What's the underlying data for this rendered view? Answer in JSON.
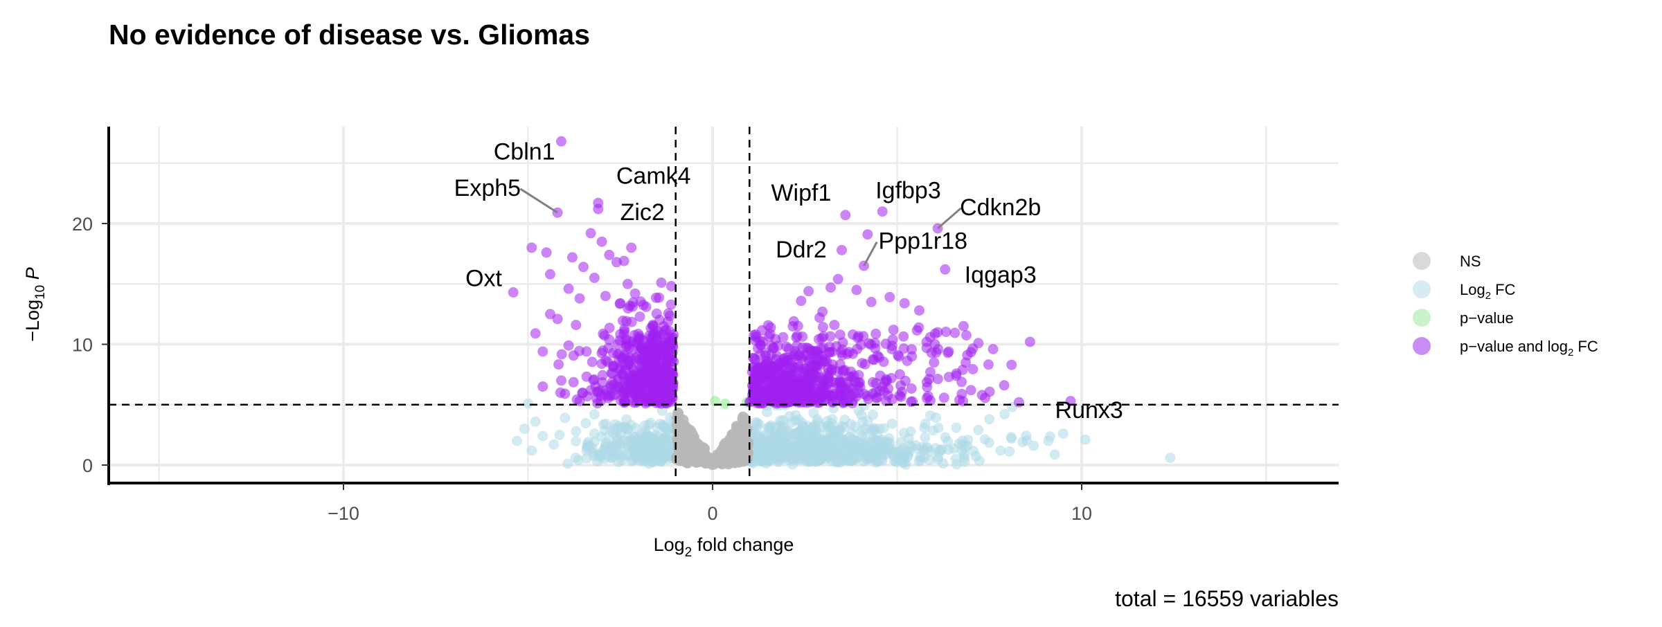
{
  "chart_data": {
    "type": "scatter",
    "title": "No evidence of disease vs. Gliomas",
    "xlabel": "Log2 fold change",
    "ylabel": "-Log10 P",
    "xlim": [
      -15.5,
      16.5
    ],
    "ylim": [
      -1.4,
      28.5
    ],
    "x_ticks": [
      -10,
      0,
      10
    ],
    "x_tick_labels": [
      "−10",
      "0",
      "10"
    ],
    "y_ticks": [
      0,
      10,
      20
    ],
    "y_tick_labels": [
      "0",
      "10",
      "20"
    ],
    "grid": true,
    "cutoffs": {
      "x": [
        -1,
        1
      ],
      "y": 5
    },
    "caption": "total = 16559 variables",
    "legend": {
      "position": "right",
      "entries": [
        {
          "key": "ns",
          "label": "NS",
          "color": "#c8c8c8"
        },
        {
          "key": "fc",
          "label": "Log2 FC",
          "color": "#cfe6f0"
        },
        {
          "key": "p",
          "label": "p−value",
          "color": "#c4f0c4"
        },
        {
          "key": "both",
          "label": "p−value and log2 FC",
          "color": "#b061f0"
        }
      ]
    },
    "colors": {
      "ns": "#b8b8b8",
      "fc": "#add8e6",
      "p": "#90ee90",
      "both": "#a020f0"
    },
    "labeled_genes": [
      {
        "gene": "Cbln1",
        "x": -4.1,
        "y": 26.8,
        "label_x": -5.1,
        "label_y": 25.3
      },
      {
        "gene": "Exph5",
        "x": -4.2,
        "y": 20.9,
        "label_x": -6.1,
        "label_y": 22.3
      },
      {
        "gene": "Camk4",
        "x": -3.1,
        "y": 21.7,
        "label_x": -1.6,
        "label_y": 23.3
      },
      {
        "gene": "Zic2",
        "x": -3.1,
        "y": 21.2,
        "label_x": -1.9,
        "label_y": 20.3
      },
      {
        "gene": "Oxt",
        "x": -5.4,
        "y": 14.3,
        "label_x": -6.2,
        "label_y": 14.8
      },
      {
        "gene": "Wipf1",
        "x": 3.6,
        "y": 20.7,
        "label_x": 2.4,
        "label_y": 21.9
      },
      {
        "gene": "Igfbp3",
        "x": 4.6,
        "y": 21.0,
        "label_x": 5.3,
        "label_y": 22.1
      },
      {
        "gene": "Cdkn2b",
        "x": 6.1,
        "y": 19.6,
        "label_x": 7.8,
        "label_y": 20.7
      },
      {
        "gene": "Ddr2",
        "x": 3.5,
        "y": 17.8,
        "label_x": 2.4,
        "label_y": 17.2
      },
      {
        "gene": "Ppp1r18",
        "x": 4.1,
        "y": 16.5,
        "label_x": 5.7,
        "label_y": 17.9
      },
      {
        "gene": "Iqgap3",
        "x": 6.3,
        "y": 16.2,
        "label_x": 7.8,
        "label_y": 15.1
      },
      {
        "gene": "Runx3",
        "x": 9.7,
        "y": 5.3,
        "label_x": 10.2,
        "label_y": 3.9
      }
    ],
    "highlight_points": {
      "both": [
        [
          -4.1,
          26.8
        ],
        [
          -4.2,
          20.9
        ],
        [
          -3.1,
          21.7
        ],
        [
          -3.1,
          21.2
        ],
        [
          -5.4,
          14.3
        ],
        [
          -4.9,
          18.0
        ],
        [
          -4.5,
          17.6
        ],
        [
          -3.8,
          17.2
        ],
        [
          -3.3,
          19.2
        ],
        [
          -3.0,
          18.5
        ],
        [
          -2.8,
          17.4
        ],
        [
          -2.6,
          16.8
        ],
        [
          -2.4,
          16.9
        ],
        [
          -2.2,
          18.0
        ],
        [
          -3.5,
          16.4
        ],
        [
          -3.2,
          15.5
        ],
        [
          -3.9,
          14.6
        ],
        [
          -4.4,
          15.8
        ],
        [
          -3.6,
          13.8
        ],
        [
          -2.9,
          14.0
        ],
        [
          -2.5,
          13.4
        ],
        [
          -4.4,
          12.5
        ],
        [
          -4.8,
          10.9
        ],
        [
          -4.6,
          9.4
        ],
        [
          -4.1,
          7.0
        ],
        [
          -3.9,
          9.9
        ],
        [
          -4.2,
          12.1
        ],
        [
          -3.7,
          11.6
        ],
        [
          -4.6,
          6.5
        ],
        [
          -4.0,
          5.9
        ],
        [
          -3.6,
          5.3
        ],
        [
          -2.3,
          15.0
        ],
        [
          -2.1,
          14.2
        ],
        [
          -1.8,
          13.1
        ],
        [
          3.6,
          20.7
        ],
        [
          4.6,
          21.0
        ],
        [
          6.1,
          19.6
        ],
        [
          3.5,
          17.8
        ],
        [
          4.1,
          16.5
        ],
        [
          6.3,
          16.2
        ],
        [
          9.7,
          5.3
        ],
        [
          4.2,
          19.1
        ],
        [
          3.4,
          15.4
        ],
        [
          3.2,
          14.7
        ],
        [
          2.6,
          14.4
        ],
        [
          2.4,
          13.6
        ],
        [
          3.9,
          14.5
        ],
        [
          4.3,
          13.5
        ],
        [
          4.8,
          13.9
        ],
        [
          5.2,
          13.4
        ],
        [
          5.6,
          12.8
        ],
        [
          5.8,
          10.2
        ],
        [
          6.1,
          11.0
        ],
        [
          6.4,
          9.4
        ],
        [
          6.8,
          11.5
        ],
        [
          7.2,
          10.1
        ],
        [
          7.6,
          9.6
        ],
        [
          8.1,
          8.3
        ],
        [
          8.6,
          10.2
        ],
        [
          7.9,
          6.6
        ],
        [
          7.3,
          5.8
        ],
        [
          8.3,
          5.2
        ],
        [
          7.0,
          6.2
        ],
        [
          6.6,
          7.4
        ],
        [
          5.9,
          7.7
        ],
        [
          4.7,
          7.1
        ],
        [
          3.3,
          11.6
        ],
        [
          2.9,
          12.2
        ],
        [
          2.2,
          11.9
        ],
        [
          6.9,
          9.1
        ],
        [
          6.0,
          8.5
        ],
        [
          5.4,
          9.0
        ],
        [
          4.9,
          11.2
        ],
        [
          4.4,
          10.1
        ],
        [
          3.8,
          10.8
        ],
        [
          3.0,
          9.7
        ]
      ],
      "fc": [
        [
          12.4,
          0.6
        ],
        [
          10.1,
          2.1
        ],
        [
          9.5,
          2.6
        ],
        [
          9.1,
          2.0
        ],
        [
          8.7,
          1.6
        ],
        [
          8.4,
          1.9
        ],
        [
          8.1,
          2.2
        ],
        [
          7.8,
          1.2
        ],
        [
          7.5,
          3.8
        ],
        [
          7.2,
          2.9
        ],
        [
          6.9,
          1.6
        ],
        [
          6.6,
          3.1
        ],
        [
          6.3,
          2.3
        ],
        [
          5.9,
          4.1
        ],
        [
          -5.0,
          5.1
        ],
        [
          -4.8,
          3.6
        ],
        [
          -4.6,
          2.4
        ],
        [
          -4.3,
          1.7
        ],
        [
          -4.0,
          3.9
        ],
        [
          -3.7,
          2.8
        ],
        [
          -3.4,
          1.5
        ],
        [
          -5.3,
          2.0
        ],
        [
          -5.1,
          3.0
        ],
        [
          -4.9,
          1.2
        ],
        [
          -3.2,
          4.2
        ],
        [
          -2.9,
          0.9
        ],
        [
          -2.6,
          2.4
        ],
        [
          -2.2,
          3.3
        ]
      ]
    }
  }
}
